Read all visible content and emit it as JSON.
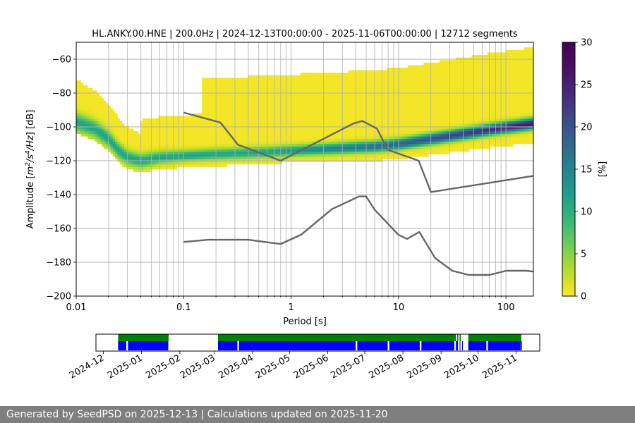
{
  "chart_data": [
    {
      "type": "heatmap",
      "title": "HL.ANKY.00.HNE | 200.0Hz | 2024-12-13T00:00:00 - 2025-11-06T00:00:00 | 12712 segments",
      "xlabel": "Period [s]",
      "ylabel": "Amplitude [m²/s⁴/Hz] [dB]",
      "ylabel_parts": [
        "Amplitude [",
        "m",
        "2",
        "/s",
        "4",
        "/Hz",
        "] [dB]"
      ],
      "x_scale": "log",
      "xlim": [
        0.01,
        180
      ],
      "ylim": [
        -200,
        -50
      ],
      "xticks": [
        0.01,
        0.1,
        1,
        10,
        100
      ],
      "xtick_labels": [
        "0.01",
        "0.1",
        "1",
        "10",
        "100"
      ],
      "yticks": [
        -200,
        -180,
        -160,
        -140,
        -120,
        -100,
        -80,
        -60
      ],
      "ytick_labels": [
        "−200",
        "−180",
        "−160",
        "−140",
        "−120",
        "−100",
        "−80",
        "−60"
      ],
      "grid": true,
      "colorbar": {
        "label": "[%]",
        "range": [
          0,
          30
        ],
        "ticks": [
          0,
          5,
          10,
          15,
          20,
          25,
          30
        ],
        "tick_labels": [
          "0",
          "5",
          "10",
          "15",
          "20",
          "25",
          "30"
        ],
        "colormap": "viridis-reversed"
      },
      "mode_curve": {
        "periods": [
          0.01,
          0.015,
          0.02,
          0.025,
          0.03,
          0.04,
          0.06,
          0.1,
          0.2,
          0.5,
          1,
          2,
          4,
          6,
          10,
          20,
          40,
          80,
          180
        ],
        "values": [
          -97,
          -101,
          -107,
          -114,
          -118,
          -120,
          -118,
          -117,
          -116,
          -115,
          -114,
          -113,
          -112,
          -111.5,
          -110,
          -107,
          -104,
          -101,
          -98
        ]
      },
      "noise_models": [
        {
          "name": "",
          "periods": [
            0.1,
            0.22,
            0.32,
            0.8,
            3.8,
            4.6,
            6.3,
            7.9,
            15.4,
            20,
            354.8
          ],
          "values": [
            -91.5,
            -97.4,
            -110.5,
            -120,
            -98,
            -96.5,
            -101,
            -113.5,
            -120,
            -138.5,
            -126
          ]
        },
        {
          "name": "",
          "periods": [
            0.1,
            0.17,
            0.4,
            0.8,
            1.24,
            2.4,
            4.3,
            5,
            6,
            10,
            12,
            15.6,
            21.9,
            31.6,
            45,
            70,
            101,
            154,
            179
          ],
          "values": [
            -168,
            -166.7,
            -166.7,
            -169.2,
            -163.7,
            -148.6,
            -141.1,
            -141.1,
            -149,
            -163.8,
            -166.2,
            -162.1,
            -177.5,
            -185,
            -187.5,
            -187.5,
            -185,
            -185,
            -185.5
          ]
        }
      ]
    },
    {
      "type": "timeline",
      "xlim": [
        "2024-11-25",
        "2025-11-20"
      ],
      "x_tick_labels": [
        "2024-12",
        "2025-01",
        "2025-02",
        "2025-03",
        "2025-04",
        "2025-05",
        "2025-06",
        "2025-07",
        "2025-08",
        "2025-09",
        "2025-10",
        "2025-11"
      ],
      "x_tick_dates": [
        "2024-12-01",
        "2025-01-01",
        "2025-02-01",
        "2025-03-01",
        "2025-04-01",
        "2025-05-01",
        "2025-06-01",
        "2025-07-01",
        "2025-08-01",
        "2025-09-01",
        "2025-10-01",
        "2025-11-01"
      ],
      "data_availability": {
        "color": "#0000ff",
        "intervals": [
          [
            "2024-12-13",
            "2024-12-20"
          ],
          [
            "2024-12-21",
            "2025-01-23"
          ],
          [
            "2025-03-04",
            "2025-03-20"
          ],
          [
            "2025-03-21",
            "2025-06-24"
          ],
          [
            "2025-06-25",
            "2025-07-20"
          ],
          [
            "2025-07-21",
            "2025-08-15"
          ],
          [
            "2025-08-16",
            "2025-09-12"
          ],
          [
            "2025-09-13",
            "2025-09-15"
          ],
          [
            "2025-09-16",
            "2025-09-17"
          ],
          [
            "2025-09-18",
            "2025-09-19"
          ],
          [
            "2025-09-23",
            "2025-10-08"
          ],
          [
            "2025-10-09",
            "2025-11-05"
          ],
          [
            "2025-11-05",
            "2025-11-06"
          ]
        ]
      },
      "psd_coverage": {
        "color": "#008000",
        "intervals": [
          [
            "2024-12-13",
            "2025-01-23"
          ],
          [
            "2025-03-04",
            "2025-09-13"
          ],
          [
            "2025-09-14",
            "2025-09-15"
          ],
          [
            "2025-09-16",
            "2025-09-17"
          ],
          [
            "2025-09-23",
            "2025-11-05"
          ]
        ]
      }
    }
  ],
  "footer": {
    "text": "Generated by SeedPSD on 2025-12-13 | Calculations updated on 2025-11-20"
  }
}
